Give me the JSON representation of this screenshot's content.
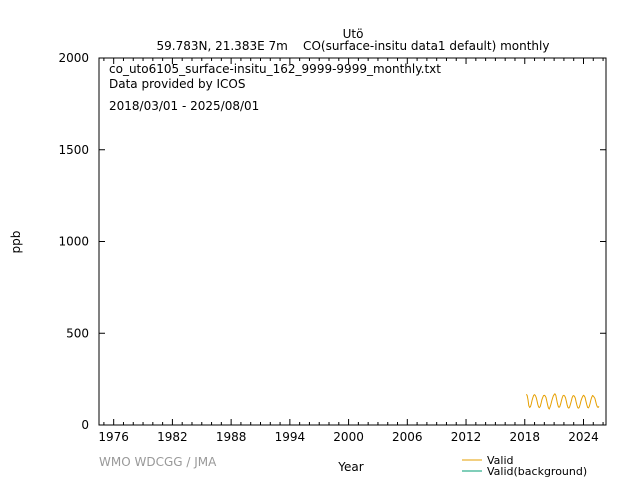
{
  "header": {
    "station": "Utö",
    "subtitle": "59.783N, 21.383E 7m    CO(surface-insitu data1 default) monthly"
  },
  "annotation": {
    "filename": "co_uto6105_surface-insitu_162_9999-9999_monthly.txt",
    "provider": "Data provided by ICOS",
    "period": "2018/03/01 - 2025/08/01"
  },
  "footer": {
    "credit": "WMO WDCGG / JMA"
  },
  "chart_data": {
    "type": "line",
    "xlabel": "Year",
    "ylabel": "ppb",
    "xlim": [
      1974.5,
      2026.3
    ],
    "ylim": [
      0,
      2000
    ],
    "x_ticks": [
      1976,
      1982,
      1988,
      1994,
      2000,
      2006,
      2012,
      2018,
      2024
    ],
    "y_ticks": [
      0,
      500,
      1000,
      1500,
      2000
    ],
    "grid": false,
    "legend_position": "bottom-right",
    "colors": {
      "valid": "#e69f00",
      "valid_background": "#009e73"
    },
    "series": [
      {
        "name": "Valid",
        "color": "#e69f00",
        "x": [
          "2018-03",
          "2018-04",
          "2018-05",
          "2018-06",
          "2018-07",
          "2018-08",
          "2018-09",
          "2018-10",
          "2018-11",
          "2018-12",
          "2019-01",
          "2019-02",
          "2019-03",
          "2019-04",
          "2019-05",
          "2019-06",
          "2019-07",
          "2019-08",
          "2019-09",
          "2019-10",
          "2019-11",
          "2019-12",
          "2020-01",
          "2020-02",
          "2020-03",
          "2020-04",
          "2020-05",
          "2020-06",
          "2020-07",
          "2020-08",
          "2020-09",
          "2020-10",
          "2020-11",
          "2020-12",
          "2021-01",
          "2021-02",
          "2021-03",
          "2021-04",
          "2021-05",
          "2021-06",
          "2021-07",
          "2021-08",
          "2021-09",
          "2021-10",
          "2021-11",
          "2021-12",
          "2022-01",
          "2022-02",
          "2022-03",
          "2022-04",
          "2022-05",
          "2022-06",
          "2022-07",
          "2022-08",
          "2022-09",
          "2022-10",
          "2022-11",
          "2022-12",
          "2023-01",
          "2023-02",
          "2023-03",
          "2023-04",
          "2023-05",
          "2023-06",
          "2023-07",
          "2023-08",
          "2023-09",
          "2023-10",
          "2023-11",
          "2023-12",
          "2024-01",
          "2024-02",
          "2024-03",
          "2024-04",
          "2024-05",
          "2024-06",
          "2024-07",
          "2024-08",
          "2024-09",
          "2024-10",
          "2024-11",
          "2024-12",
          "2025-01",
          "2025-02",
          "2025-03",
          "2025-04",
          "2025-05",
          "2025-06",
          "2025-07",
          "2025-08"
        ],
        "values": [
          168,
          160,
          138,
          105,
          96,
          100,
          115,
          135,
          150,
          162,
          165,
          160,
          150,
          132,
          112,
          98,
          95,
          102,
          118,
          138,
          150,
          160,
          162,
          158,
          150,
          130,
          110,
          93,
          88,
          97,
          112,
          130,
          145,
          158,
          165,
          170,
          162,
          140,
          118,
          102,
          96,
          100,
          116,
          134,
          150,
          160,
          162,
          158,
          148,
          128,
          108,
          95,
          92,
          98,
          112,
          130,
          148,
          158,
          160,
          156,
          146,
          126,
          106,
          94,
          92,
          98,
          114,
          132,
          146,
          156,
          162,
          158,
          150,
          130,
          110,
          96,
          94,
          100,
          116,
          135,
          150,
          160,
          158,
          152,
          145,
          128,
          110,
          98,
          96,
          102
        ]
      },
      {
        "name": "Valid(background)",
        "color": "#009e73",
        "x": [],
        "values": []
      }
    ]
  }
}
